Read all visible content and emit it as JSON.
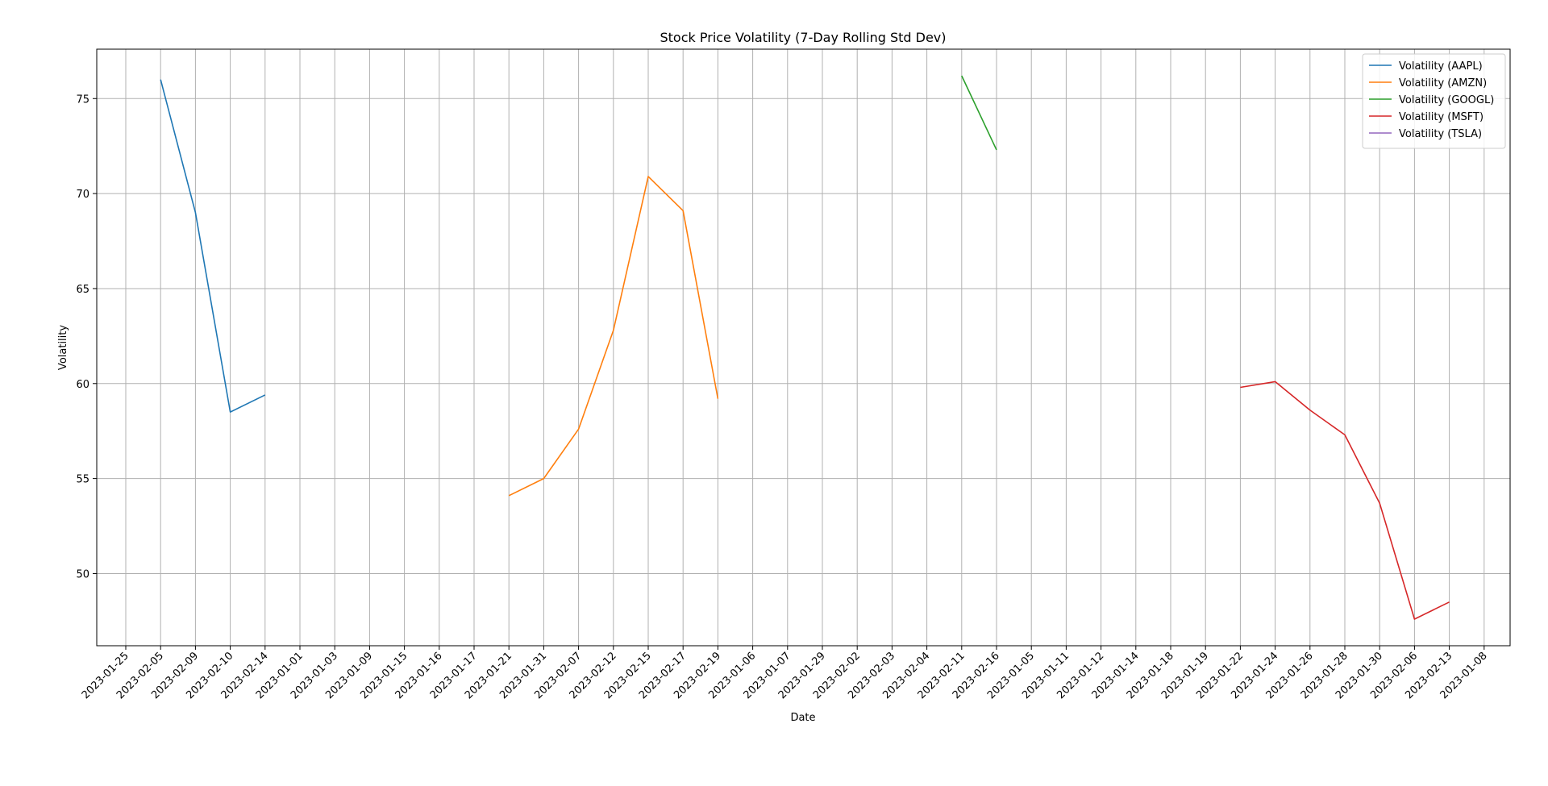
{
  "chart_data": {
    "type": "line",
    "title": "Stock Price Volatility (7-Day Rolling Std Dev)",
    "xlabel": "Date",
    "ylabel": "Volatility",
    "categories": [
      "2023-01-25",
      "2023-02-05",
      "2023-02-09",
      "2023-02-10",
      "2023-02-14",
      "2023-01-01",
      "2023-01-03",
      "2023-01-09",
      "2023-01-15",
      "2023-01-16",
      "2023-01-17",
      "2023-01-21",
      "2023-01-31",
      "2023-02-07",
      "2023-02-12",
      "2023-02-15",
      "2023-02-17",
      "2023-02-19",
      "2023-01-06",
      "2023-01-07",
      "2023-01-29",
      "2023-02-02",
      "2023-02-03",
      "2023-02-04",
      "2023-02-11",
      "2023-02-16",
      "2023-01-05",
      "2023-01-11",
      "2023-01-12",
      "2023-01-14",
      "2023-01-18",
      "2023-01-19",
      "2023-01-22",
      "2023-01-24",
      "2023-01-26",
      "2023-01-28",
      "2023-01-30",
      "2023-02-06",
      "2023-02-13",
      "2023-01-08"
    ],
    "ylim": [
      46.2,
      77.6
    ],
    "yticks": [
      50,
      55,
      60,
      65,
      70,
      75
    ],
    "grid": true,
    "legend_position": "top-right",
    "series": [
      {
        "name": "Volatility (AAPL)",
        "color": "#1f77b4",
        "values": [
          null,
          76.0,
          69.0,
          58.5,
          59.4,
          null,
          null,
          null,
          null,
          null,
          null,
          null,
          null,
          null,
          null,
          null,
          null,
          null,
          null,
          null,
          null,
          null,
          null,
          null,
          null,
          null,
          null,
          null,
          null,
          null,
          null,
          null,
          null,
          null,
          null,
          null,
          null,
          null,
          null,
          null
        ]
      },
      {
        "name": "Volatility (AMZN)",
        "color": "#ff7f0e",
        "values": [
          null,
          null,
          null,
          null,
          null,
          null,
          null,
          null,
          null,
          null,
          null,
          54.1,
          55.0,
          57.6,
          62.8,
          70.9,
          69.1,
          59.2,
          null,
          null,
          null,
          null,
          null,
          null,
          null,
          null,
          null,
          null,
          null,
          null,
          null,
          null,
          null,
          null,
          null,
          null,
          null,
          null,
          null,
          null
        ]
      },
      {
        "name": "Volatility (GOOGL)",
        "color": "#2ca02c",
        "values": [
          null,
          null,
          null,
          null,
          null,
          null,
          null,
          null,
          null,
          null,
          null,
          null,
          null,
          null,
          null,
          null,
          null,
          null,
          null,
          null,
          null,
          null,
          null,
          null,
          76.2,
          72.3,
          null,
          null,
          null,
          null,
          null,
          null,
          null,
          null,
          null,
          null,
          null,
          null,
          null,
          null
        ]
      },
      {
        "name": "Volatility (MSFT)",
        "color": "#d62728",
        "values": [
          null,
          null,
          null,
          null,
          null,
          null,
          null,
          null,
          null,
          null,
          null,
          null,
          null,
          null,
          null,
          null,
          null,
          null,
          null,
          null,
          null,
          null,
          null,
          null,
          null,
          null,
          null,
          null,
          null,
          null,
          null,
          null,
          59.8,
          60.1,
          58.6,
          57.3,
          53.7,
          47.6,
          48.5,
          null
        ]
      },
      {
        "name": "Volatility (TSLA)",
        "color": "#9467bd",
        "values": [
          null,
          null,
          null,
          null,
          null,
          null,
          null,
          null,
          null,
          null,
          null,
          null,
          null,
          null,
          null,
          null,
          null,
          null,
          null,
          null,
          null,
          null,
          null,
          null,
          null,
          null,
          null,
          null,
          null,
          null,
          null,
          null,
          null,
          null,
          null,
          null,
          null,
          null,
          null,
          null
        ]
      }
    ]
  }
}
